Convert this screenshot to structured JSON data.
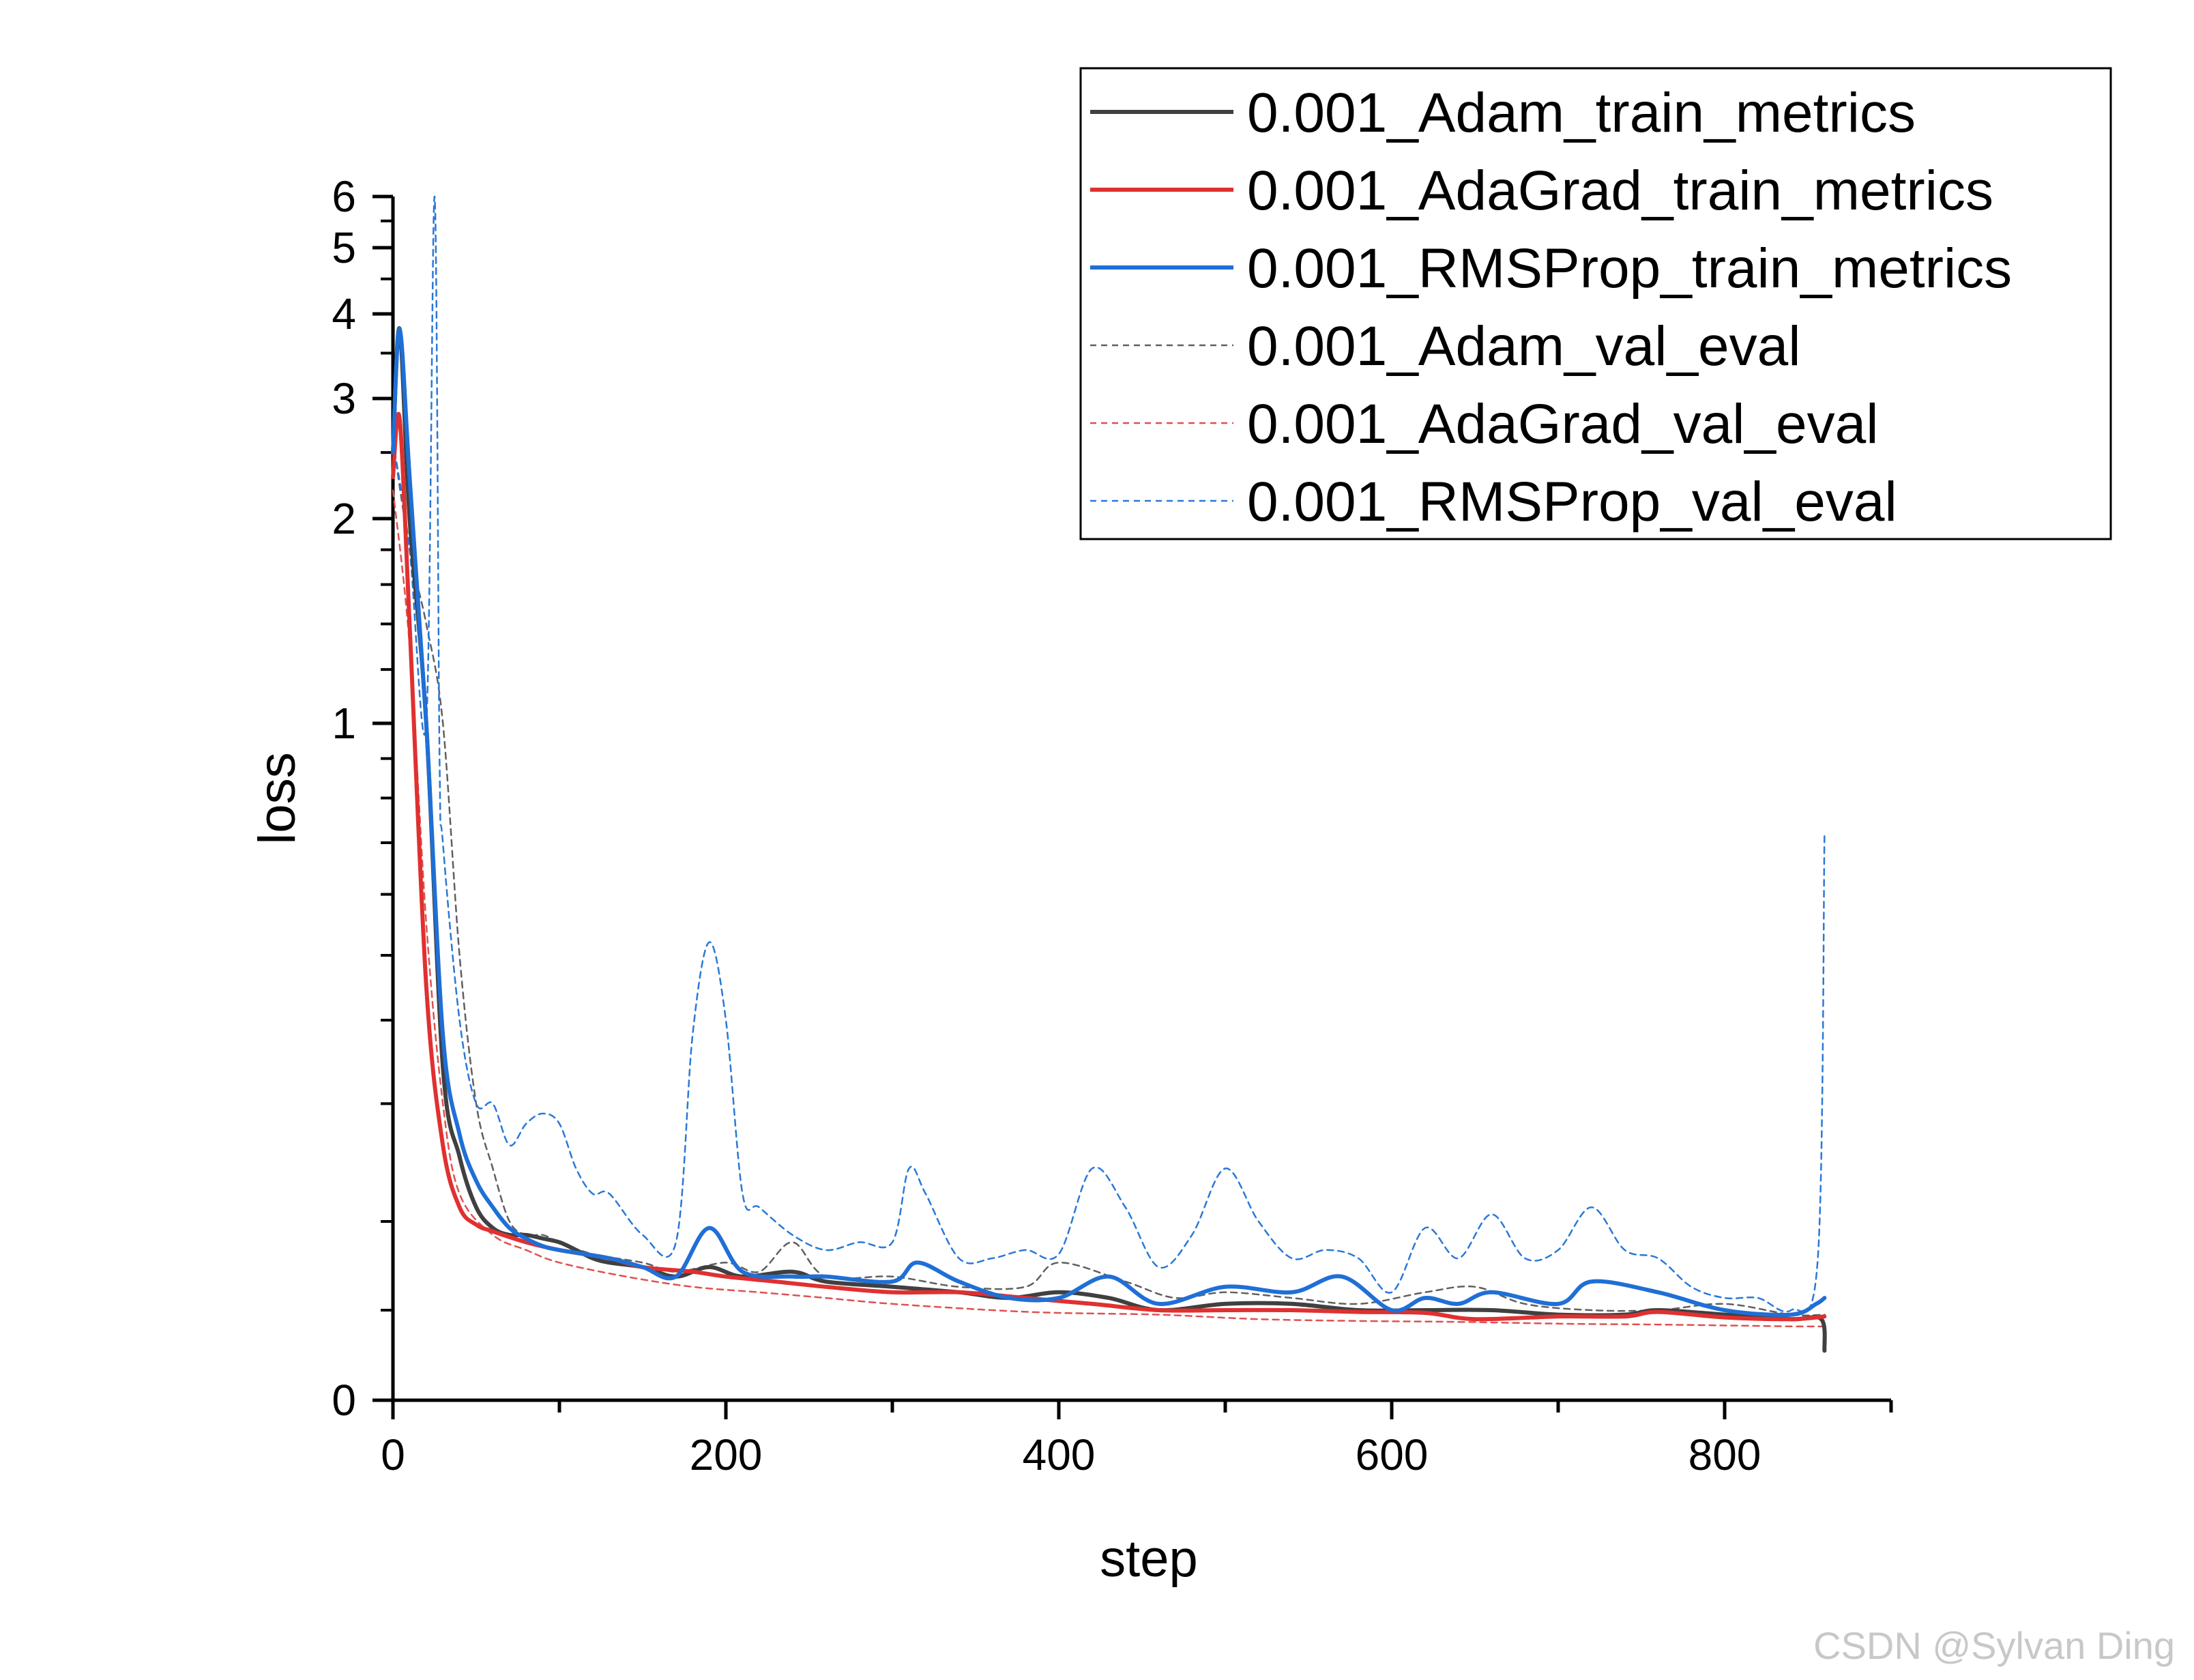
{
  "watermark": "CSDN @Sylvan Ding",
  "chart_data": {
    "type": "line",
    "xlabel": "step",
    "ylabel": "loss",
    "xlim": [
      0,
      900
    ],
    "x_ticks": [
      0,
      200,
      400,
      600,
      800
    ],
    "y_scale": "log-like",
    "ylim": [
      0,
      6
    ],
    "y_ticks": [
      0,
      1,
      2,
      3,
      4,
      5,
      6
    ],
    "grid": false,
    "legend_position": "top-right",
    "series": [
      {
        "name": "0.001_Adam_train_metrics",
        "color": "#404040",
        "style": "solid",
        "x": [
          0,
          4,
          10,
          20,
          30,
          40,
          50,
          60,
          70,
          80,
          90,
          100,
          110,
          120,
          130,
          150,
          170,
          190,
          210,
          240,
          260,
          300,
          340,
          370,
          400,
          430,
          460,
          500,
          540,
          580,
          620,
          660,
          700,
          740,
          760,
          800,
          840,
          858,
          860
        ],
        "y": [
          2.5,
          3.8,
          2.0,
          1.0,
          0.34,
          0.25,
          0.21,
          0.19,
          0.18,
          0.18,
          0.175,
          0.17,
          0.16,
          0.15,
          0.145,
          0.14,
          0.13,
          0.14,
          0.13,
          0.135,
          0.125,
          0.12,
          0.115,
          0.11,
          0.115,
          0.11,
          0.1,
          0.105,
          0.105,
          0.1,
          0.1,
          0.1,
          0.095,
          0.095,
          0.1,
          0.095,
          0.09,
          0.09,
          0.055
        ]
      },
      {
        "name": "0.001_AdaGrad_train_metrics",
        "color": "#e03030",
        "style": "solid",
        "x": [
          0,
          4,
          10,
          20,
          30,
          40,
          50,
          60,
          80,
          100,
          130,
          150,
          180,
          200,
          230,
          260,
          300,
          340,
          380,
          420,
          460,
          500,
          540,
          580,
          620,
          650,
          700,
          740,
          760,
          800,
          840,
          860
        ],
        "y": [
          2.3,
          2.8,
          1.4,
          0.45,
          0.26,
          0.21,
          0.195,
          0.185,
          0.17,
          0.16,
          0.15,
          0.14,
          0.135,
          0.13,
          0.125,
          0.12,
          0.115,
          0.115,
          0.11,
          0.105,
          0.1,
          0.1,
          0.1,
          0.098,
          0.097,
          0.09,
          0.093,
          0.093,
          0.098,
          0.092,
          0.09,
          0.093
        ]
      },
      {
        "name": "0.001_RMSProp_train_metrics",
        "color": "#1f6fd6",
        "style": "solid",
        "x": [
          0,
          4,
          10,
          20,
          30,
          40,
          50,
          60,
          70,
          80,
          90,
          100,
          130,
          150,
          170,
          190,
          210,
          240,
          260,
          300,
          315,
          340,
          370,
          400,
          430,
          460,
          500,
          540,
          570,
          600,
          620,
          640,
          660,
          700,
          720,
          760,
          800,
          840,
          855,
          860
        ],
        "y": [
          2.5,
          3.8,
          2.3,
          1.0,
          0.38,
          0.27,
          0.23,
          0.21,
          0.19,
          0.175,
          0.165,
          0.16,
          0.15,
          0.14,
          0.13,
          0.19,
          0.135,
          0.13,
          0.13,
          0.125,
          0.145,
          0.125,
          0.11,
          0.11,
          0.13,
          0.105,
          0.12,
          0.115,
          0.13,
          0.1,
          0.11,
          0.105,
          0.115,
          0.105,
          0.125,
          0.115,
          0.1,
          0.095,
          0.105,
          0.11
        ]
      },
      {
        "name": "0.001_Adam_val_eval",
        "color": "#606060",
        "style": "dashed",
        "x": [
          0,
          10,
          20,
          30,
          40,
          50,
          60,
          70,
          80,
          90,
          100,
          120,
          150,
          170,
          200,
          220,
          240,
          260,
          300,
          340,
          380,
          400,
          440,
          470,
          500,
          540,
          580,
          620,
          650,
          680,
          720,
          760,
          800,
          840,
          860
        ],
        "y": [
          2.6,
          1.8,
          1.4,
          1.0,
          0.5,
          0.3,
          0.24,
          0.2,
          0.18,
          0.18,
          0.17,
          0.155,
          0.145,
          0.135,
          0.145,
          0.135,
          0.17,
          0.13,
          0.13,
          0.12,
          0.12,
          0.145,
          0.125,
          0.11,
          0.115,
          0.11,
          0.105,
          0.115,
          0.12,
          0.105,
          0.1,
          0.1,
          0.105,
          0.095,
          0.095
        ]
      },
      {
        "name": "0.001_AdaGrad_val_eval",
        "color": "#e05050",
        "style": "dashed",
        "x": [
          0,
          10,
          20,
          30,
          40,
          60,
          80,
          100,
          140,
          180,
          220,
          260,
          300,
          360,
          400,
          460,
          520,
          580,
          640,
          700,
          760,
          800,
          840,
          860
        ],
        "y": [
          2.2,
          1.3,
          0.55,
          0.3,
          0.22,
          0.18,
          0.16,
          0.145,
          0.13,
          0.12,
          0.115,
          0.11,
          0.105,
          0.1,
          0.097,
          0.095,
          0.09,
          0.088,
          0.087,
          0.085,
          0.084,
          0.083,
          0.082,
          0.082
        ]
      },
      {
        "name": "0.001_RMSProp_val_eval",
        "color": "#2a78d8",
        "style": "dashed",
        "x": [
          0,
          10,
          20,
          25,
          28,
          30,
          40,
          50,
          60,
          70,
          80,
          90,
          100,
          110,
          120,
          130,
          150,
          170,
          180,
          190,
          200,
          210,
          220,
          240,
          260,
          280,
          300,
          310,
          320,
          340,
          360,
          380,
          400,
          420,
          440,
          460,
          480,
          500,
          520,
          540,
          560,
          580,
          600,
          620,
          640,
          660,
          680,
          700,
          720,
          740,
          760,
          780,
          800,
          820,
          840,
          856,
          860
        ],
        "y": [
          2.6,
          1.8,
          1.0,
          6.0,
          0.9,
          0.7,
          0.4,
          0.3,
          0.3,
          0.26,
          0.28,
          0.29,
          0.28,
          0.24,
          0.22,
          0.22,
          0.18,
          0.17,
          0.38,
          0.52,
          0.4,
          0.22,
          0.21,
          0.18,
          0.16,
          0.17,
          0.17,
          0.24,
          0.22,
          0.15,
          0.15,
          0.16,
          0.155,
          0.24,
          0.21,
          0.14,
          0.18,
          0.24,
          0.2,
          0.15,
          0.16,
          0.15,
          0.115,
          0.19,
          0.15,
          0.205,
          0.15,
          0.16,
          0.21,
          0.16,
          0.15,
          0.12,
          0.11,
          0.11,
          0.1,
          0.15,
          0.72
        ]
      }
    ]
  }
}
